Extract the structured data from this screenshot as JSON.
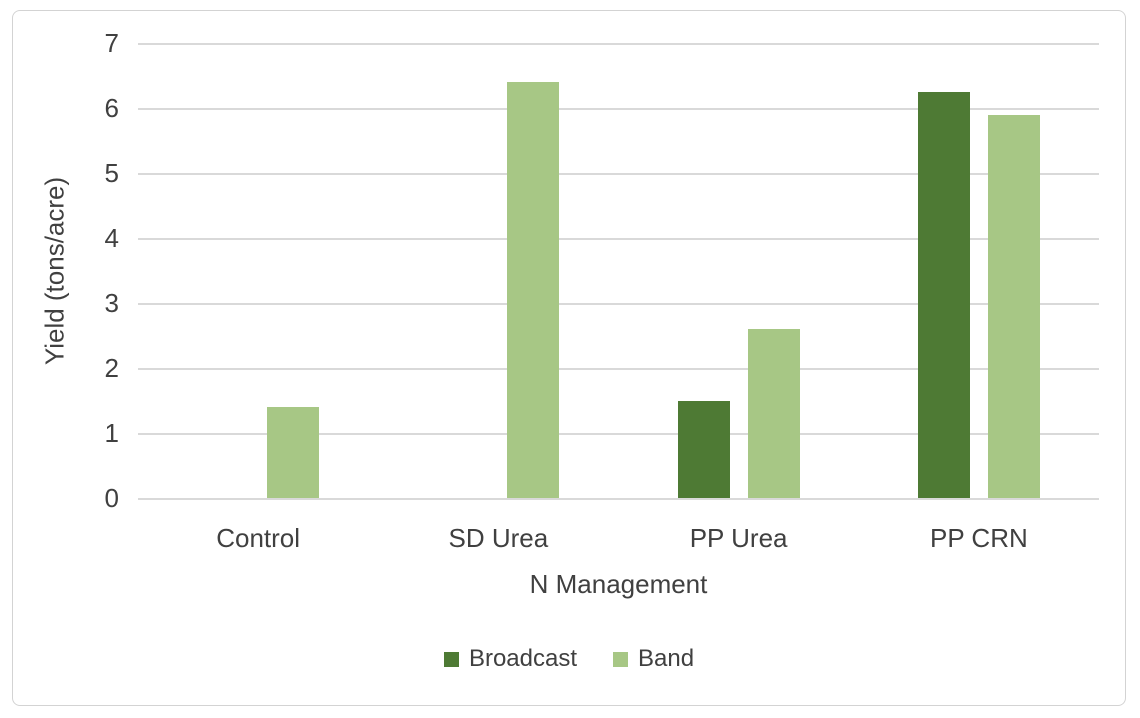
{
  "frame": {
    "background": "#ffffff",
    "border_color": "#d3d3d3"
  },
  "chart_data": {
    "type": "bar",
    "title": "",
    "categories": [
      "Control",
      "SD Urea",
      "PP Urea",
      "PP CRN"
    ],
    "series": [
      {
        "name": "Broadcast",
        "color": "#4e7a34",
        "values": [
          0,
          0,
          1.5,
          6.25
        ]
      },
      {
        "name": "Band",
        "color": "#a7c785",
        "values": [
          1.4,
          6.4,
          2.6,
          5.9
        ]
      }
    ],
    "xlabel": "N Management",
    "ylabel": "Yield (tons/acre)",
    "ylim": [
      0,
      7
    ],
    "yticks": [
      0,
      1,
      2,
      3,
      4,
      5,
      6,
      7
    ],
    "grid": true,
    "gridline_color": "#d9d9d9",
    "text_color": "#404040",
    "legend_position": "bottom"
  }
}
